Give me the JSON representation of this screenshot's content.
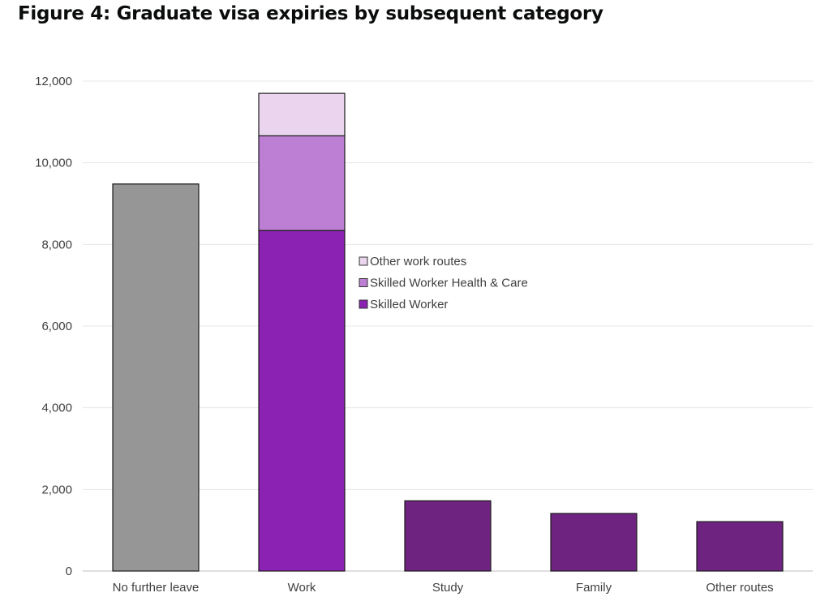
{
  "chart_data": {
    "type": "bar",
    "title": "Figure 4: Graduate visa expiries by subsequent category",
    "xlabel": "",
    "ylabel": "",
    "ylim": [
      0,
      12000
    ],
    "yticks": [
      0,
      2000,
      4000,
      6000,
      8000,
      10000,
      12000
    ],
    "ytick_labels": [
      "0",
      "2,000",
      "4,000",
      "6,000",
      "8,000",
      "10,000",
      "12,000"
    ],
    "grid": true,
    "stacked": true,
    "legend_position": "center",
    "categories": [
      "No further leave",
      "Work",
      "Study",
      "Family",
      "Other routes"
    ],
    "bars": [
      {
        "category": "No further leave",
        "segments": [
          {
            "series": null,
            "value": 9480,
            "color": "#969696"
          }
        ]
      },
      {
        "category": "Work",
        "segments": [
          {
            "series": "Skilled Worker",
            "value": 8340,
            "color": "#8c22b4"
          },
          {
            "series": "Skilled Worker Health & Care",
            "value": 2320,
            "color": "#bd7fd3"
          },
          {
            "series": "Other work routes",
            "value": 1040,
            "color": "#ead4ee"
          }
        ]
      },
      {
        "category": "Study",
        "segments": [
          {
            "series": null,
            "value": 1720,
            "color": "#6e2381"
          }
        ]
      },
      {
        "category": "Family",
        "segments": [
          {
            "series": null,
            "value": 1410,
            "color": "#6e2381"
          }
        ]
      },
      {
        "category": "Other routes",
        "segments": [
          {
            "series": null,
            "value": 1210,
            "color": "#6e2381"
          }
        ]
      }
    ],
    "legend": [
      {
        "label": "Other work routes",
        "color": "#ead4ee"
      },
      {
        "label": "Skilled Worker Health & Care",
        "color": "#bd7fd3"
      },
      {
        "label": "Skilled Worker",
        "color": "#8c22b4"
      }
    ],
    "colors": {
      "grid": "#e8e8e8",
      "axis": "#bfbfbf",
      "bar_outline": "#1a1a1a",
      "text": "#404040"
    }
  }
}
